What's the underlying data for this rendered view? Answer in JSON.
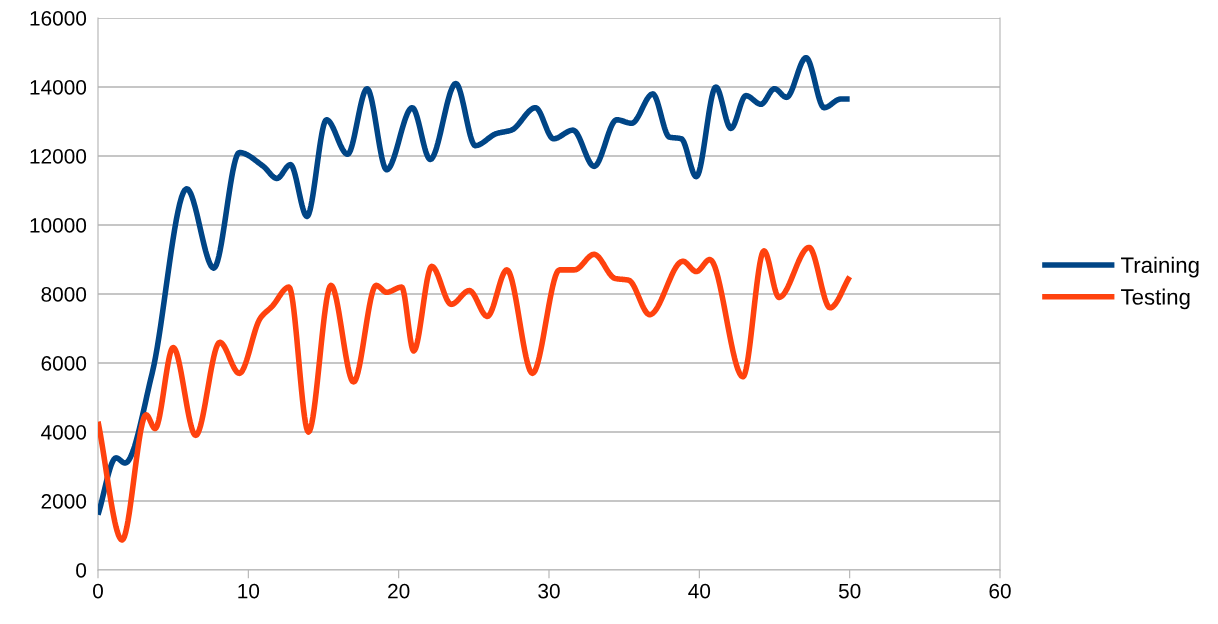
{
  "chart_data": {
    "type": "line",
    "xlim": [
      0,
      60
    ],
    "xticks": [
      0,
      10,
      20,
      30,
      40,
      50,
      60
    ],
    "ylim": [
      0,
      16000
    ],
    "yticks": [
      0,
      2000,
      4000,
      6000,
      8000,
      10000,
      12000,
      14000,
      16000
    ],
    "grid": "y",
    "legend": "right",
    "marker": "none",
    "line_style": "solid",
    "series": [
      {
        "name": "Training",
        "color": "#004586",
        "x": [
          0,
          1.2,
          1.8,
          3.6,
          5.9,
          7.7,
          9.4,
          11,
          11.9,
          12.8,
          13.9,
          15.2,
          16.6,
          17.9,
          19.2,
          20.9,
          22.1,
          23.8,
          25.1,
          26.5,
          27.5,
          29.1,
          30.3,
          31.6,
          33.0,
          34.5,
          35.5,
          36.9,
          38.0,
          38.8,
          39.8,
          41.1,
          42.1,
          43.1,
          44.1,
          45.0,
          45.8,
          47.1,
          48.3,
          49.4,
          50
        ],
        "values": [
          1600,
          3250,
          3100,
          5700,
          11050,
          8750,
          12100,
          11700,
          11350,
          11750,
          10250,
          13050,
          12050,
          13950,
          11600,
          13400,
          11900,
          14100,
          12300,
          12650,
          12750,
          13400,
          12500,
          12750,
          11700,
          13050,
          12950,
          13800,
          12550,
          12500,
          11400,
          14000,
          12800,
          13750,
          13500,
          13950,
          13700,
          14850,
          13400,
          13650,
          13650
        ]
      },
      {
        "name": "Testing",
        "color": "#ff420e",
        "x": [
          0,
          1.6,
          3.2,
          3.8,
          5.0,
          6.5,
          8.1,
          9.4,
          10.8,
          11.6,
          12.7,
          14.0,
          15.5,
          17.0,
          18.5,
          19.2,
          20.2,
          21.0,
          22.2,
          23.5,
          24.7,
          25.9,
          27.2,
          28.9,
          30.7,
          31.7,
          33.0,
          34.4,
          35.3,
          36.7,
          38.9,
          39.8,
          40.7,
          42.9,
          44.3,
          45.3,
          47.3,
          48.7,
          50
        ],
        "values": [
          4300,
          870,
          4500,
          4100,
          6450,
          3900,
          6600,
          5700,
          7300,
          7650,
          8200,
          4000,
          8250,
          5450,
          8250,
          8050,
          8200,
          6350,
          8800,
          7700,
          8100,
          7350,
          8700,
          5700,
          8700,
          8700,
          9150,
          8450,
          8400,
          7400,
          8950,
          8650,
          9000,
          5600,
          9250,
          7900,
          9350,
          7600,
          8500
        ]
      }
    ]
  }
}
